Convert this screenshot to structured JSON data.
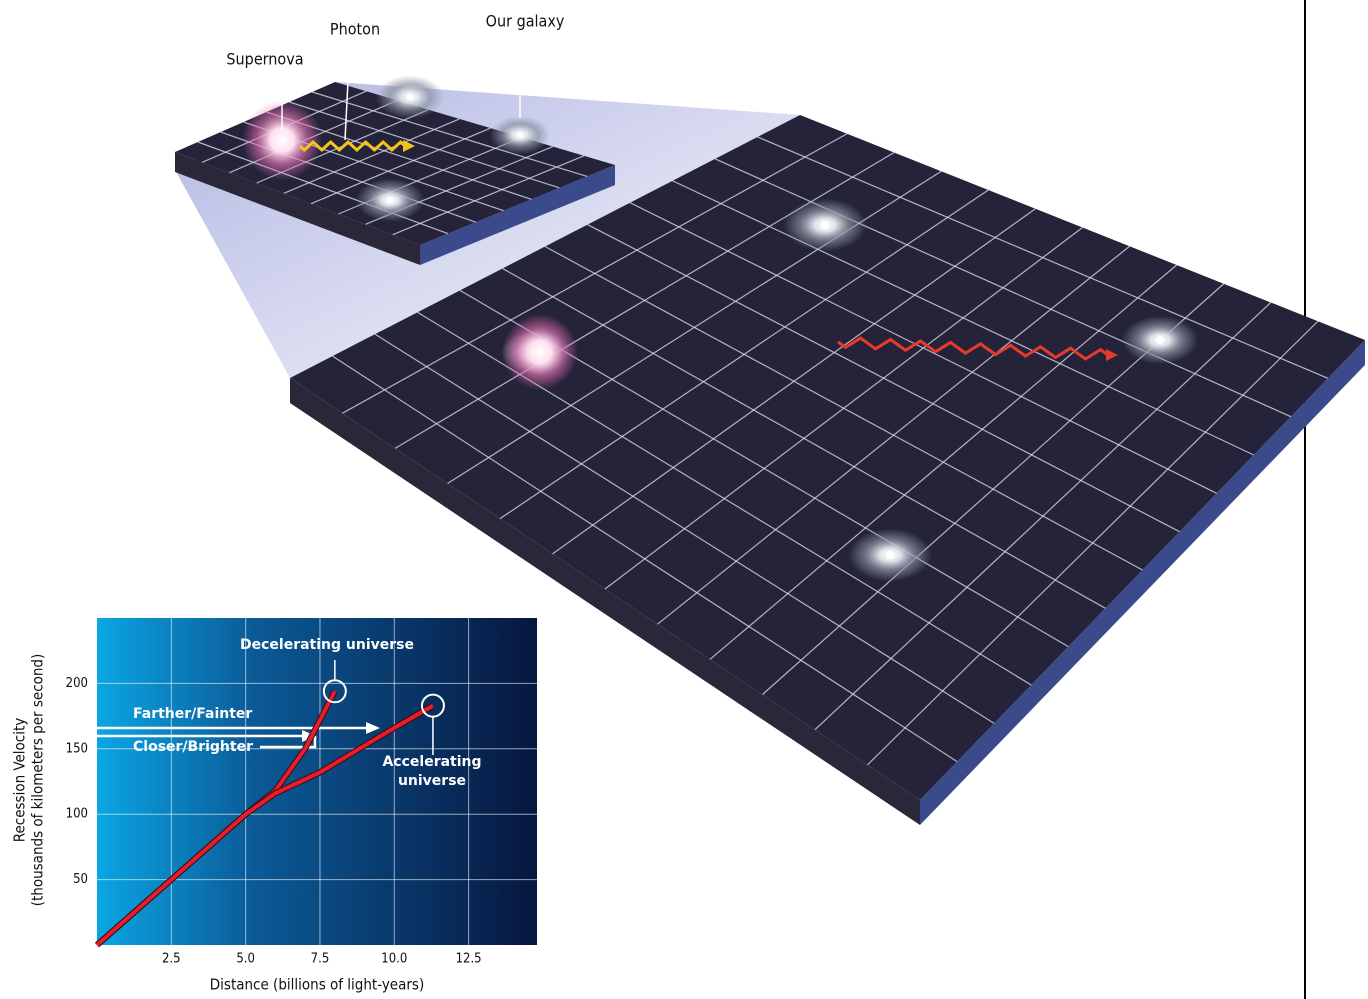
{
  "illustration": {
    "labels": [
      "Supernova",
      "Photon",
      "Our galaxy"
    ]
  },
  "chart_data": {
    "type": "line",
    "xlabel": "Distance (billions of light-years)",
    "ylabel": [
      "Recession Velocity",
      "(thousands of kilometers per second)"
    ],
    "annotations": [
      "Farther/Fainter",
      "Closer/Brighter"
    ],
    "xlim": [
      0,
      14.8
    ],
    "ylim": [
      0,
      250
    ],
    "xticks": [
      2.5,
      {
        "value": 5,
        "label": "5.0"
      },
      7.5,
      {
        "value": 10,
        "label": "10.0"
      },
      12.5
    ],
    "yticks": [
      50,
      100,
      150,
      200
    ],
    "grid": true,
    "series": [
      {
        "name": "Decelerating universe",
        "color": "#e41e2b",
        "x": [
          0,
          2.5,
          5,
          6,
          7,
          8
        ],
        "values": [
          0,
          50,
          100,
          118,
          150,
          194
        ]
      },
      {
        "name": "Accelerating universe",
        "color": "#e41e2b",
        "x": [
          0,
          2.5,
          5,
          6,
          7.5,
          10,
          11.3
        ],
        "values": [
          0,
          50,
          100,
          116,
          132,
          166,
          183
        ]
      }
    ]
  }
}
